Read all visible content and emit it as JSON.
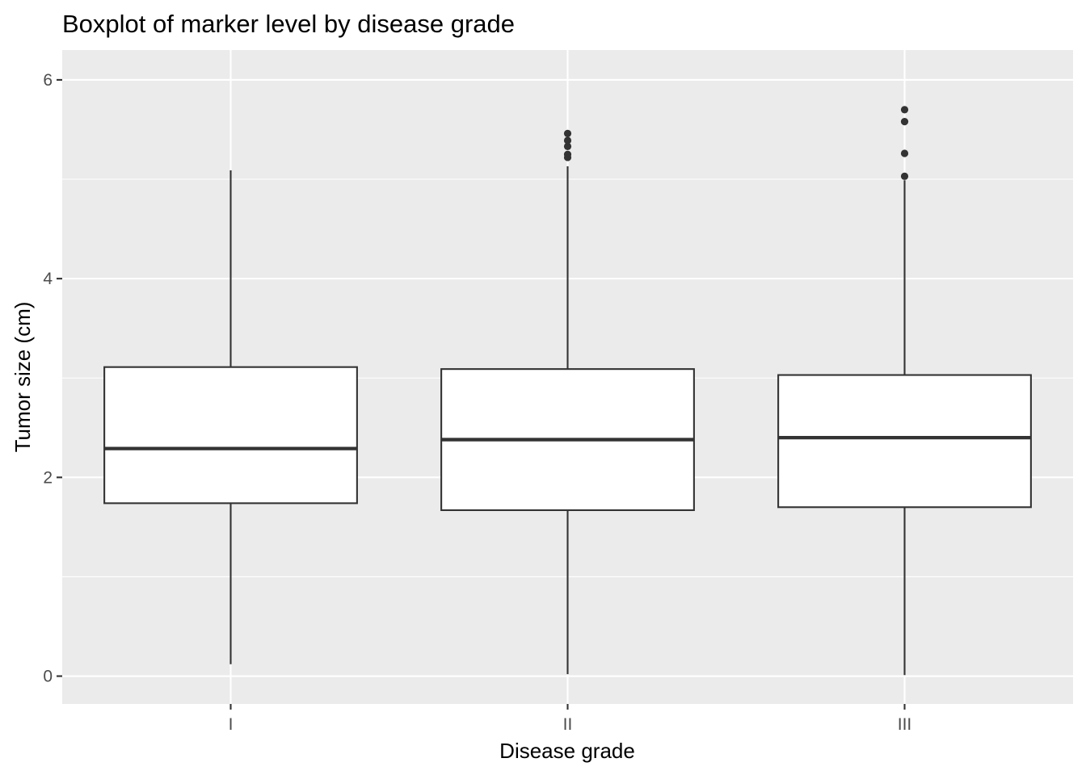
{
  "chart_data": {
    "type": "boxplot",
    "title": "Boxplot of marker level by disease grade",
    "xlabel": "Disease grade",
    "ylabel": "Tumor size (cm)",
    "categories": [
      "I",
      "II",
      "III"
    ],
    "ylim": [
      -0.28,
      6.3
    ],
    "y_ticks": [
      0,
      2,
      4,
      6
    ],
    "y_minor_ticks": [
      1,
      3,
      5
    ],
    "grid": true,
    "legend": "none",
    "colors": {
      "panel": "#ebebeb",
      "box_fill": "#ffffff",
      "box_line": "#333333",
      "grid": "#ffffff"
    },
    "boxes": [
      {
        "category": "I",
        "whisker_low": 0.12,
        "q1": 1.74,
        "median": 2.29,
        "q3": 3.11,
        "whisker_high": 5.09,
        "outliers": []
      },
      {
        "category": "II",
        "whisker_low": 0.02,
        "q1": 1.67,
        "median": 2.38,
        "q3": 3.09,
        "whisker_high": 5.13,
        "outliers": [
          5.22,
          5.25,
          5.33,
          5.39,
          5.46
        ]
      },
      {
        "category": "III",
        "whisker_low": 0.01,
        "q1": 1.7,
        "median": 2.4,
        "q3": 3.03,
        "whisker_high": 4.99,
        "outliers": [
          5.03,
          5.26,
          5.58,
          5.7
        ]
      }
    ]
  }
}
